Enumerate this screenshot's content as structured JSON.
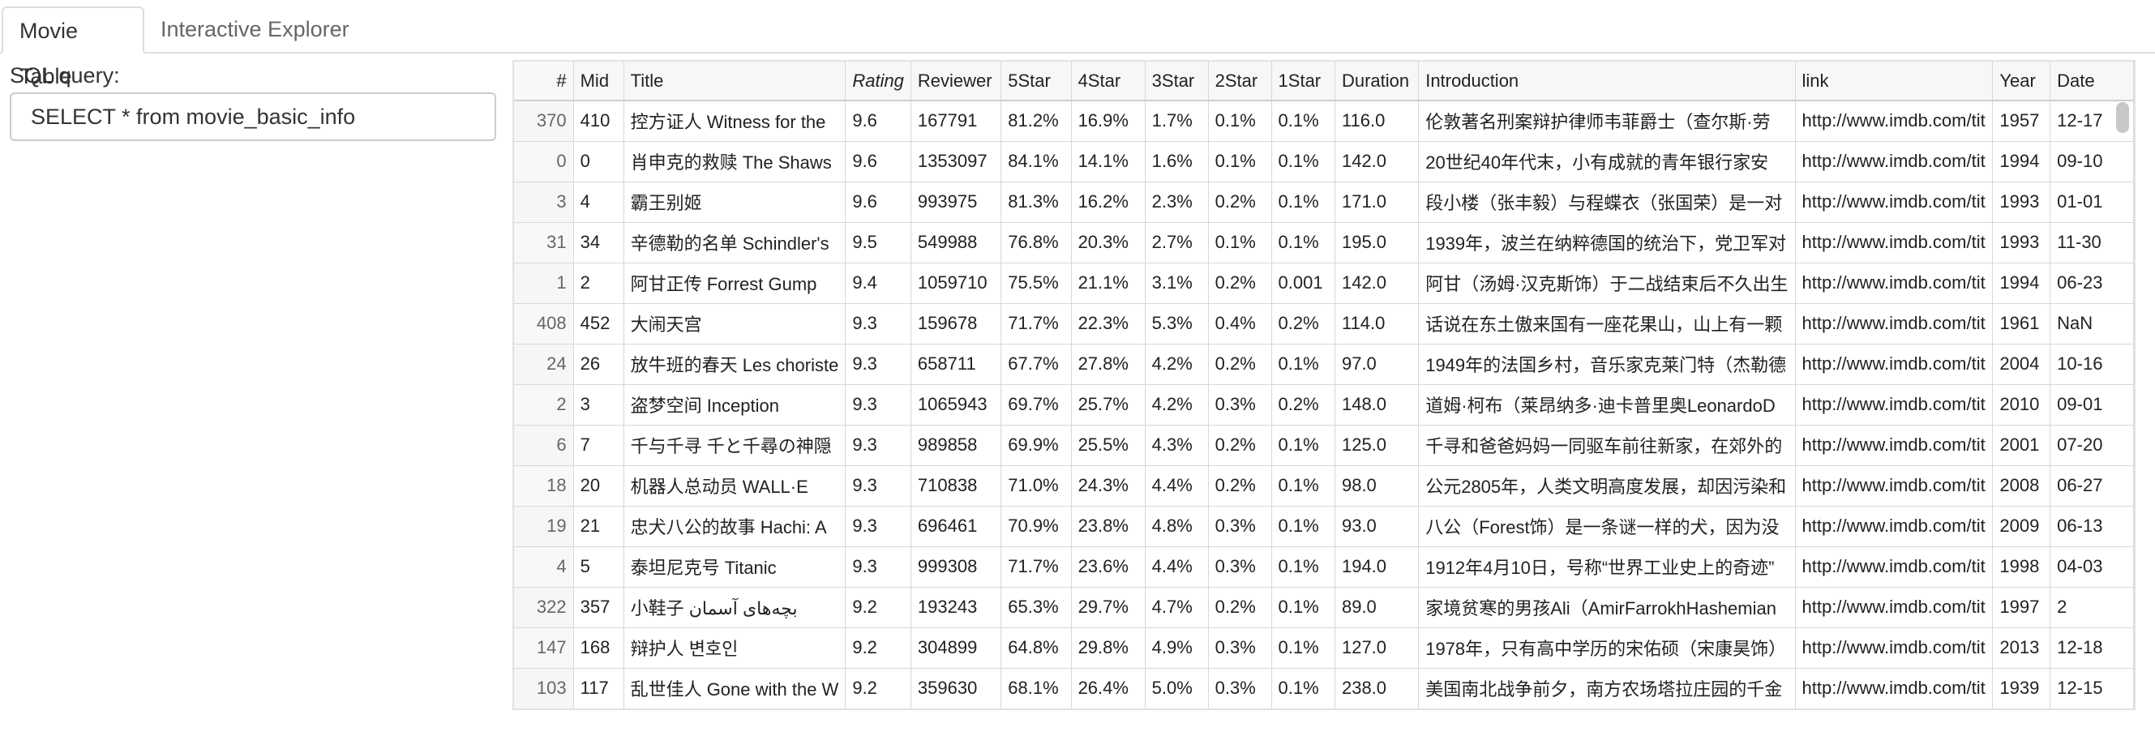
{
  "tabs": [
    {
      "label": "Movie Table",
      "active": true
    },
    {
      "label": "Interactive Explorer",
      "active": false
    }
  ],
  "sql": {
    "label": "SQL query:",
    "value": "SELECT * from movie_basic_info"
  },
  "table": {
    "columns": [
      "#",
      "Mid",
      "Title",
      "Rating",
      "Reviewer",
      "5Star",
      "4Star",
      "3Star",
      "2Star",
      "1Star",
      "Duration",
      "Introduction",
      "link",
      "Year",
      "Date"
    ],
    "rows": [
      [
        "370",
        "410",
        "控方证人 Witness for the",
        "9.6",
        "167791",
        "81.2%",
        "16.9%",
        "1.7%",
        "0.1%",
        "0.1%",
        "116.0",
        "伦敦著名刑案辩护律师韦菲爵士（查尔斯·劳",
        "http://www.imdb.com/tit",
        "1957",
        "12-17"
      ],
      [
        "0",
        "0",
        "肖申克的救赎 The Shaws",
        "9.6",
        "1353097",
        "84.1%",
        "14.1%",
        "1.6%",
        "0.1%",
        "0.1%",
        "142.0",
        "20世纪40年代末，小有成就的青年银行家安",
        "http://www.imdb.com/tit",
        "1994",
        "09-10"
      ],
      [
        "3",
        "4",
        "霸王别姬",
        "9.6",
        "993975",
        "81.3%",
        "16.2%",
        "2.3%",
        "0.2%",
        "0.1%",
        "171.0",
        "段小楼（张丰毅）与程蝶衣（张国荣）是一对",
        "http://www.imdb.com/tit",
        "1993",
        "01-01"
      ],
      [
        "31",
        "34",
        "辛德勒的名单 Schindler's",
        "9.5",
        "549988",
        "76.8%",
        "20.3%",
        "2.7%",
        "0.1%",
        "0.1%",
        "195.0",
        "1939年，波兰在纳粹德国的统治下，党卫军对",
        "http://www.imdb.com/tit",
        "1993",
        "11-30"
      ],
      [
        "1",
        "2",
        "阿甘正传 Forrest Gump",
        "9.4",
        "1059710",
        "75.5%",
        "21.1%",
        "3.1%",
        "0.2%",
        "0.001",
        "142.0",
        "阿甘（汤姆·汉克斯饰）于二战结束后不久出生",
        "http://www.imdb.com/tit",
        "1994",
        "06-23"
      ],
      [
        "408",
        "452",
        "大闹天宫",
        "9.3",
        "159678",
        "71.7%",
        "22.3%",
        "5.3%",
        "0.4%",
        "0.2%",
        "114.0",
        "话说在东土傲来国有一座花果山，山上有一颗",
        "http://www.imdb.com/tit",
        "1961",
        "NaN"
      ],
      [
        "24",
        "26",
        "放牛班的春天 Les choriste",
        "9.3",
        "658711",
        "67.7%",
        "27.8%",
        "4.2%",
        "0.2%",
        "0.1%",
        "97.0",
        "1949年的法国乡村，音乐家克莱门特（杰勒德",
        "http://www.imdb.com/tit",
        "2004",
        "10-16"
      ],
      [
        "2",
        "3",
        "盗梦空间 Inception",
        "9.3",
        "1065943",
        "69.7%",
        "25.7%",
        "4.2%",
        "0.3%",
        "0.2%",
        "148.0",
        "道姆·柯布（莱昂纳多·迪卡普里奥LeonardoD",
        "http://www.imdb.com/tit",
        "2010",
        "09-01"
      ],
      [
        "6",
        "7",
        "千与千寻 千と千尋の神隠",
        "9.3",
        "989858",
        "69.9%",
        "25.5%",
        "4.3%",
        "0.2%",
        "0.1%",
        "125.0",
        "千寻和爸爸妈妈一同驱车前往新家，在郊外的",
        "http://www.imdb.com/tit",
        "2001",
        "07-20"
      ],
      [
        "18",
        "20",
        "机器人总动员 WALL·E",
        "9.3",
        "710838",
        "71.0%",
        "24.3%",
        "4.4%",
        "0.2%",
        "0.1%",
        "98.0",
        "公元2805年，人类文明高度发展，却因污染和",
        "http://www.imdb.com/tit",
        "2008",
        "06-27"
      ],
      [
        "19",
        "21",
        "忠犬八公的故事 Hachi: A",
        "9.3",
        "696461",
        "70.9%",
        "23.8%",
        "4.8%",
        "0.3%",
        "0.1%",
        "93.0",
        "八公（Forest饰）是一条谜一样的犬，因为没",
        "http://www.imdb.com/tit",
        "2009",
        "06-13"
      ],
      [
        "4",
        "5",
        "泰坦尼克号 Titanic",
        "9.3",
        "999308",
        "71.7%",
        "23.6%",
        "4.4%",
        "0.3%",
        "0.1%",
        "194.0",
        "1912年4月10日，号称“世界工业史上的奇迹”",
        "http://www.imdb.com/tit",
        "1998",
        "04-03"
      ],
      [
        "322",
        "357",
        "小鞋子 بچه‌های آسمان",
        "9.2",
        "193243",
        "65.3%",
        "29.7%",
        "4.7%",
        "0.2%",
        "0.1%",
        "89.0",
        "家境贫寒的男孩Ali（AmirFarrokhHashemian",
        "http://www.imdb.com/tit",
        "1997",
        "2"
      ],
      [
        "147",
        "168",
        "辩护人 변호인",
        "9.2",
        "304899",
        "64.8%",
        "29.8%",
        "4.9%",
        "0.3%",
        "0.1%",
        "127.0",
        "1978年，只有高中学历的宋佑硕（宋康昊饰）",
        "http://www.imdb.com/tit",
        "2013",
        "12-18"
      ],
      [
        "103",
        "117",
        "乱世佳人 Gone with the W",
        "9.2",
        "359630",
        "68.1%",
        "26.4%",
        "5.0%",
        "0.3%",
        "0.1%",
        "238.0",
        "美国南北战争前夕，南方农场塔拉庄园的千金",
        "http://www.imdb.com/tit",
        "1939",
        "12-15"
      ]
    ]
  }
}
